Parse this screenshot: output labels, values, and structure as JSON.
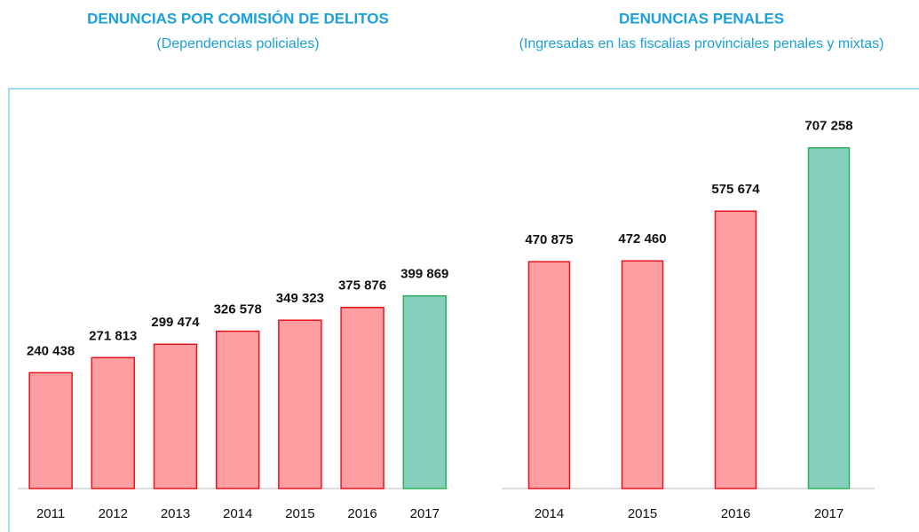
{
  "chart_data": [
    {
      "type": "bar",
      "title": "DENUNCIAS POR COMISIÓN DE DELITOS",
      "subtitle": "(Dependencias policiales)",
      "categories": [
        "2011",
        "2012",
        "2013",
        "2014",
        "2015",
        "2016",
        "2017"
      ],
      "values": [
        240438,
        271813,
        299474,
        326578,
        349323,
        375876,
        399869
      ],
      "value_labels": [
        "240 438",
        "271 813",
        "299 474",
        "326 578",
        "349 323",
        "375 876",
        "399 869"
      ],
      "colors": [
        "#ff9ea2",
        "#ff9ea2",
        "#ff9ea2",
        "#ff9ea2",
        "#ff9ea2",
        "#ff9ea2",
        "#86cfbd"
      ],
      "ylim": [
        0,
        830000
      ]
    },
    {
      "type": "bar",
      "title": "DENUNCIAS  PENALES",
      "subtitle": "(Ingresadas en las fiscalias provinciales penales y mixtas)",
      "categories": [
        "2014",
        "2015",
        "2016",
        "2017"
      ],
      "values": [
        470875,
        472460,
        575674,
        707258
      ],
      "value_labels": [
        "470 875",
        "472 460",
        "575 674",
        "707 258"
      ],
      "colors": [
        "#ff9ea2",
        "#ff9ea2",
        "#ff9ea2",
        "#86cfbd"
      ],
      "ylim": [
        0,
        830000
      ]
    }
  ]
}
